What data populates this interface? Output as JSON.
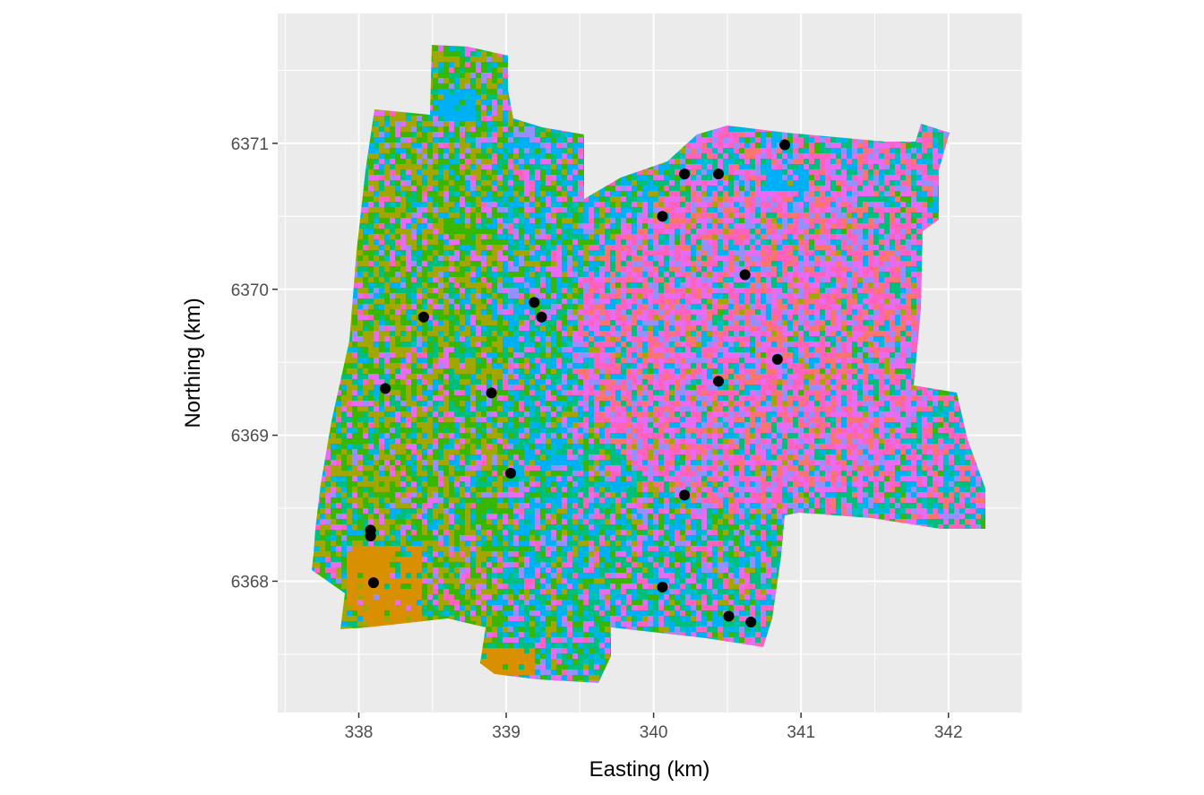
{
  "chart_data": {
    "type": "scatter",
    "title": "",
    "xlabel": "Easting (km)",
    "ylabel": "Northing (km)",
    "xlim": [
      337.45,
      342.5
    ],
    "ylim": [
      6367.1,
      6371.89
    ],
    "x_ticks": [
      338,
      339,
      340,
      341,
      342
    ],
    "x_tick_labels": [
      "338",
      "339",
      "340",
      "341",
      "342"
    ],
    "y_ticks": [
      6368,
      6369,
      6370,
      6371
    ],
    "y_tick_labels": [
      "6368",
      "6369",
      "6370",
      "6371"
    ],
    "grid": true,
    "legend": "none",
    "background_color": "#ebebeb",
    "raster_palette": [
      "#F8766D",
      "#D89000",
      "#A3A500",
      "#39B600",
      "#00BF7D",
      "#00BFC4",
      "#00B0F6",
      "#9590FF",
      "#E76BF3",
      "#FF62BC"
    ],
    "points_color": "#000000",
    "points": [
      {
        "x": 338.08,
        "y": 6368.35
      },
      {
        "x": 338.08,
        "y": 6368.31
      },
      {
        "x": 338.1,
        "y": 6367.99
      },
      {
        "x": 338.18,
        "y": 6369.32
      },
      {
        "x": 338.44,
        "y": 6369.81
      },
      {
        "x": 338.9,
        "y": 6369.29
      },
      {
        "x": 339.03,
        "y": 6368.74
      },
      {
        "x": 339.19,
        "y": 6369.91
      },
      {
        "x": 339.24,
        "y": 6369.81
      },
      {
        "x": 340.06,
        "y": 6370.5
      },
      {
        "x": 340.21,
        "y": 6370.79
      },
      {
        "x": 340.44,
        "y": 6370.79
      },
      {
        "x": 340.89,
        "y": 6370.99
      },
      {
        "x": 340.62,
        "y": 6370.1
      },
      {
        "x": 340.84,
        "y": 6369.52
      },
      {
        "x": 340.44,
        "y": 6369.37
      },
      {
        "x": 340.21,
        "y": 6368.59
      },
      {
        "x": 340.06,
        "y": 6367.96
      },
      {
        "x": 340.51,
        "y": 6367.76
      },
      {
        "x": 340.66,
        "y": 6367.72
      }
    ]
  }
}
